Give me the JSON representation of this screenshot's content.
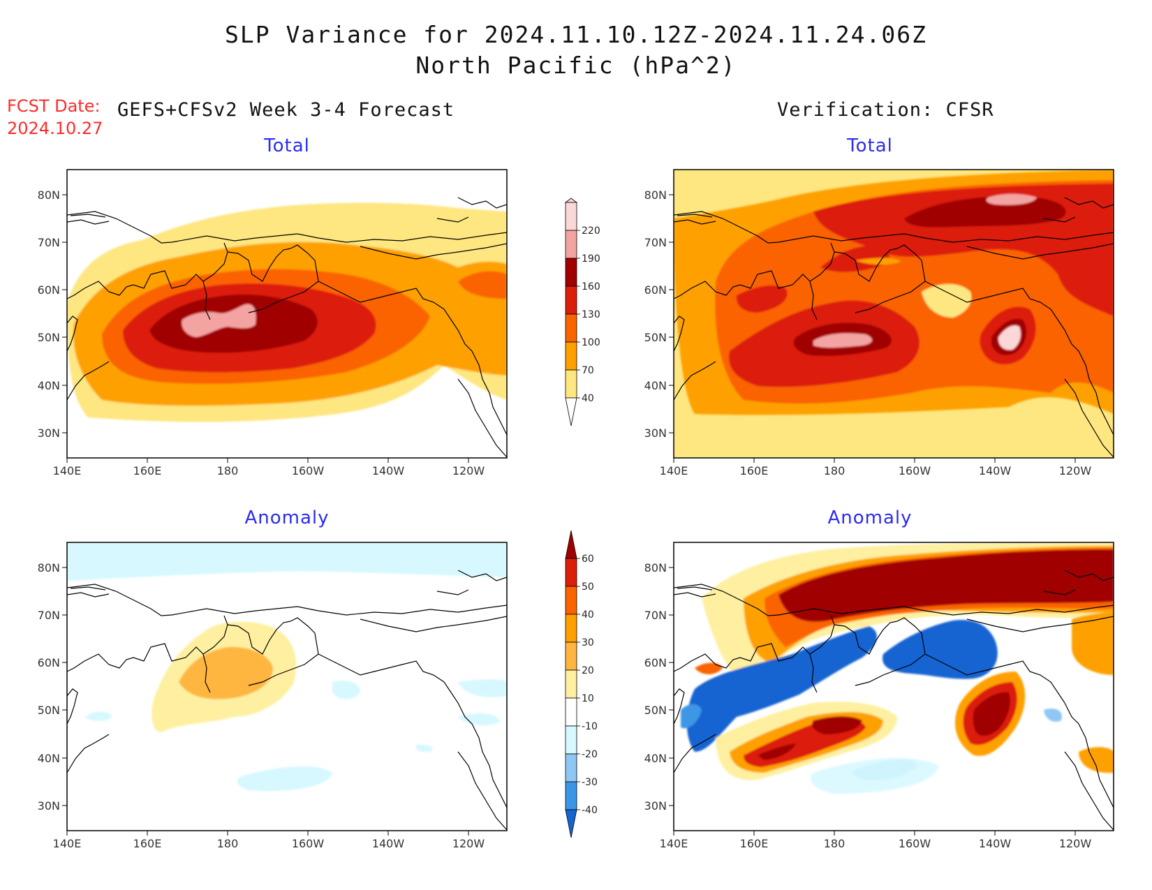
{
  "title_line1": "SLP Variance for 2024.11.10.12Z-2024.11.24.06Z",
  "title_line2": "North Pacific (hPa^2)",
  "fcst_label": "FCST Date:",
  "fcst_date": "2024.10.27",
  "left_header": "GEFS+CFSv2 Week 3-4 Forecast",
  "right_header": "Verification: CFSR",
  "panel_total_label": "Total",
  "panel_anomaly_label": "Anomaly",
  "lat_ticks": [
    "80N",
    "70N",
    "60N",
    "50N",
    "40N",
    "30N"
  ],
  "lon_ticks": [
    "140E",
    "160E",
    "180",
    "160W",
    "140W",
    "120W"
  ],
  "total_colorbar": {
    "levels": [
      "220",
      "190",
      "160",
      "130",
      "100",
      "70",
      "40"
    ],
    "colors": [
      "#fcd7d7",
      "#f4a3a3",
      "#a00000",
      "#dc1f0a",
      "#fa6400",
      "#fea000",
      "#fee680"
    ]
  },
  "anomaly_colorbar": {
    "levels": [
      "60",
      "50",
      "40",
      "30",
      "20",
      "10",
      "-10",
      "-20",
      "-30",
      "-40"
    ],
    "colors": [
      "#a00000",
      "#dc1f0a",
      "#fa6400",
      "#fea000",
      "#feb640",
      "#fef0a0",
      "#ffffff",
      "#d7f8ff",
      "#8fc6f4",
      "#3c96e6",
      "#1464d2"
    ]
  }
}
